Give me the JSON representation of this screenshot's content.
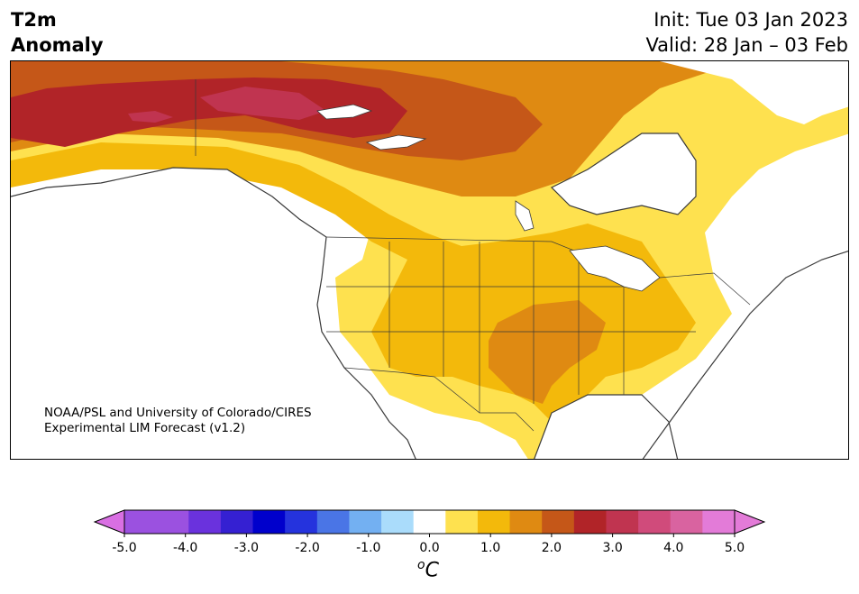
{
  "title": {
    "line1": "T2m",
    "line2": "Anomaly",
    "init": "Init: Tue 03 Jan 2023",
    "valid": "Valid: 28 Jan – 03 Feb"
  },
  "credit": {
    "line1": "NOAA/PSL and University of Colorado/CIRES",
    "line2": "Experimental LIM Forecast (v1.2)"
  },
  "colorbar": {
    "unit_base": "C",
    "unit_sup": "o",
    "ticks": [
      "-5.0",
      "-4.0",
      "-3.0",
      "-2.0",
      "-1.0",
      "0.0",
      "1.0",
      "2.0",
      "3.0",
      "4.0",
      "5.0"
    ],
    "bins": [
      {
        "range": "-5.0 to -4.5",
        "color": "#9b51e0"
      },
      {
        "range": "-4.5 to -4.0",
        "color": "#9b51e0"
      },
      {
        "range": "-4.0 to -3.5",
        "color": "#6a32dd"
      },
      {
        "range": "-3.5 to -3.0",
        "color": "#3520d2"
      },
      {
        "range": "-3.0 to -2.5",
        "color": "#0000cc"
      },
      {
        "range": "-2.5 to -2.0",
        "color": "#2533dd"
      },
      {
        "range": "-2.0 to -1.5",
        "color": "#4a75e6"
      },
      {
        "range": "-1.5 to -1.0",
        "color": "#73b0f2"
      },
      {
        "range": "-1.0 to -0.5",
        "color": "#aadcfb"
      },
      {
        "range": "-0.5 to 0.5",
        "color": "#ffffff"
      },
      {
        "range": "0.5 to 1.0",
        "color": "#fee14f"
      },
      {
        "range": "1.0 to 1.5",
        "color": "#f3b90b"
      },
      {
        "range": "1.5 to 2.0",
        "color": "#df8a12"
      },
      {
        "range": "2.0 to 2.5",
        "color": "#c55718"
      },
      {
        "range": "2.5 to 3.0",
        "color": "#b12428"
      },
      {
        "range": "3.0 to 3.5",
        "color": "#c03450"
      },
      {
        "range": "3.5 to 4.0",
        "color": "#d04b7b"
      },
      {
        "range": "4.0 to 4.5",
        "color": "#d963a0"
      },
      {
        "range": "4.5 to 5.0",
        "color": "#e37bd8"
      }
    ],
    "under_color": "#d96fe3",
    "over_color": "#e37bd8"
  }
}
